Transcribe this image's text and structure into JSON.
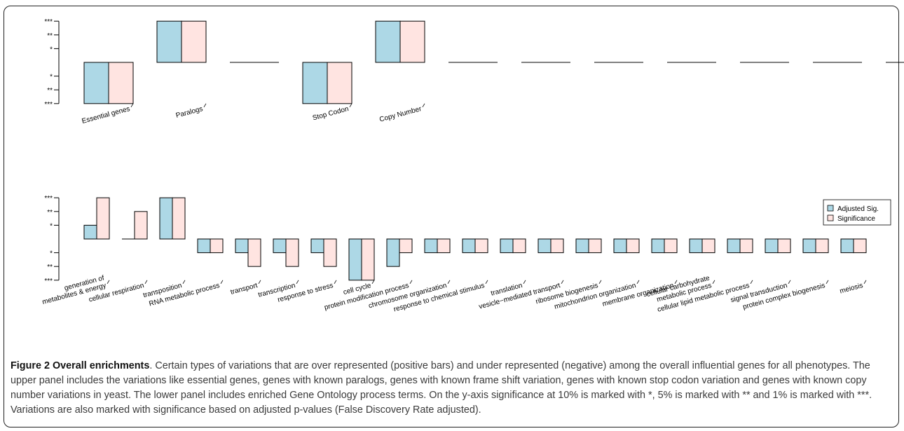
{
  "caption": {
    "title": "Figure 2 Overall enrichments",
    "text": ". Certain types of variations that are over represented (positive bars) and under represented (negative) among the overall influential genes for all phenotypes. The upper panel includes the variations like essential genes, genes with known paralogs, genes with known frame shift variation, genes with known stop codon variation and genes with known copy number variations in yeast. The lower panel includes enriched Gene Ontology process terms. On the y-axis significance at 10% is marked with *, 5% is marked with ** and 1% is marked with ***. Variations are also marked with significance based on adjusted p-values (False Discovery Rate adjusted)."
  },
  "colors": {
    "adjusted": "#add8e6",
    "significance": "#ffe4e1",
    "stroke": "#000000"
  },
  "chart_data": [
    {
      "type": "bar",
      "panel": "upper",
      "ylim": [
        -3,
        3
      ],
      "ytick_values": [
        3,
        2,
        1,
        -1,
        -2,
        -3
      ],
      "ytick_labels": [
        "***",
        "**",
        "*",
        "*",
        "**",
        "***"
      ],
      "categories": [
        "Essential genes",
        "Paralogs",
        "",
        "Stop Codon",
        "Copy Number",
        "",
        "",
        "",
        "",
        "",
        "",
        ""
      ],
      "series": [
        {
          "name": "Adjusted Sig.",
          "values": [
            -3,
            3,
            0,
            -3,
            3,
            0,
            0,
            0,
            0,
            0,
            0,
            0
          ]
        },
        {
          "name": "Significance",
          "values": [
            -3,
            3,
            0,
            -3,
            3,
            0,
            0,
            0,
            0,
            0,
            0,
            0
          ]
        }
      ]
    },
    {
      "type": "bar",
      "panel": "lower",
      "ylim": [
        -3,
        3
      ],
      "ytick_values": [
        3,
        2,
        1,
        -1,
        -2,
        -3
      ],
      "ytick_labels": [
        "***",
        "**",
        "*",
        "*",
        "**",
        "***"
      ],
      "categories": [
        "generation of\nmetabolites & energy",
        "cellular respiration",
        "transposition",
        "RNA metabolic process",
        "transport",
        "transcription",
        "response to stress",
        "cell cycle",
        "protein modification process",
        "chromosome organization",
        "response to chemical stimulus",
        "translation",
        "vesicle−mediated transport",
        "ribosome biogenesis",
        "mitochondrion organization",
        "membrane organization",
        "cellular carbohydrate\nmetabolic process",
        "cellular lipid metabolic process",
        "signal transduction",
        "protein complex biogenesis",
        "meiosis"
      ],
      "series": [
        {
          "name": "Adjusted Sig.",
          "values": [
            1,
            0,
            3,
            -1,
            -1,
            -1,
            -1,
            -3,
            -2,
            -1,
            -1,
            -1,
            -1,
            -1,
            -1,
            -1,
            -1,
            -1,
            -1,
            -1,
            -1
          ]
        },
        {
          "name": "Significance",
          "values": [
            3,
            2,
            3,
            -1,
            -2,
            -2,
            -2,
            -3,
            -1,
            -1,
            -1,
            -1,
            -1,
            -1,
            -1,
            -1,
            -1,
            -1,
            -1,
            -1,
            -1
          ]
        }
      ],
      "legend": {
        "position": "right",
        "entries": [
          "Adjusted Sig.",
          "Significance"
        ]
      }
    }
  ]
}
